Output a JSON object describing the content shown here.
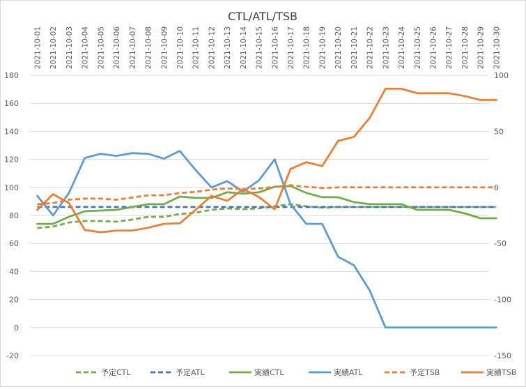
{
  "chart_data": {
    "type": "line",
    "title": "CTL/ATL/TSB",
    "categories": [
      "2021-10-01",
      "2021-10-02",
      "2021-10-03",
      "2021-10-04",
      "2021-10-05",
      "2021-10-06",
      "2021-10-07",
      "2021-10-08",
      "2021-10-09",
      "2021-10-10",
      "2021-10-11",
      "2021-10-12",
      "2021-10-13",
      "2021-10-14",
      "2021-10-15",
      "2021-10-16",
      "2021-10-17",
      "2021-10-18",
      "2021-10-19",
      "2021-10-20",
      "2021-10-21",
      "2021-10-22",
      "2021-10-23",
      "2021-10-24",
      "2021-10-25",
      "2021-10-26",
      "2021-10-27",
      "2021-10-28",
      "2021-10-29",
      "2021-10-30"
    ],
    "y_left": {
      "min": -20,
      "max": 180,
      "step": 20,
      "ticks": [
        "-20",
        "0",
        "20",
        "40",
        "60",
        "80",
        "100",
        "120",
        "140",
        "160",
        "180"
      ]
    },
    "y_right": {
      "min": -150,
      "max": 100,
      "step": 50,
      "ticks": [
        "-150",
        "-100",
        "-50",
        "0",
        "50",
        "100"
      ]
    },
    "grid": true,
    "legend_position": "bottom",
    "series": [
      {
        "name": "予定CTL",
        "axis": "left",
        "style": "dashed",
        "color": "#70ad47",
        "values": [
          71,
          72,
          75,
          76,
          76,
          75.5,
          77,
          79,
          79,
          81,
          82,
          84,
          85,
          84.5,
          85,
          86.5,
          88,
          86.5,
          85.5,
          86,
          86,
          86,
          86,
          86,
          86,
          86,
          86,
          86,
          86,
          86
        ]
      },
      {
        "name": "予定ATL",
        "axis": "left",
        "style": "dashed",
        "color": "#4472c4",
        "values": [
          86,
          86,
          86,
          86,
          86,
          86,
          86,
          86,
          86,
          86,
          86,
          86,
          86,
          86,
          86,
          86,
          86,
          86,
          86,
          86,
          86,
          86,
          86,
          86,
          86,
          86,
          86,
          86,
          86,
          86
        ]
      },
      {
        "name": "実績CTL",
        "axis": "left",
        "style": "solid",
        "color": "#70ad47",
        "values": [
          74,
          74,
          79,
          83,
          83.5,
          84,
          86,
          88,
          88,
          93.5,
          92.5,
          92.5,
          96.5,
          95.5,
          96.5,
          100.5,
          101,
          96,
          93,
          93,
          89.5,
          88,
          88,
          88,
          84,
          84,
          84,
          81.5,
          78,
          78
        ]
      },
      {
        "name": "実績ATL",
        "axis": "left",
        "style": "solid",
        "color": "#5b9bd5",
        "values": [
          94,
          80,
          96,
          121,
          124,
          122.5,
          124.5,
          124,
          120.5,
          126,
          112.5,
          100,
          104.5,
          97,
          105,
          120,
          88,
          74,
          74,
          50.5,
          44.5,
          26.5,
          0,
          0,
          0,
          0,
          0,
          0,
          0,
          0
        ]
      },
      {
        "name": "予定TSB",
        "axis": "right",
        "style": "dashed",
        "color": "#ed7d31",
        "values": [
          -15,
          -14,
          -11,
          -10,
          -10,
          -11,
          -9,
          -7,
          -7,
          -5,
          -4,
          -2,
          -1,
          -1.5,
          -1,
          0.5,
          2,
          0.5,
          -0.5,
          0,
          0,
          0,
          0,
          0,
          0,
          0,
          0,
          0,
          0,
          0
        ]
      },
      {
        "name": "実績TSB",
        "axis": "right",
        "style": "solid",
        "color": "#ed7d31",
        "values": [
          -20,
          -6,
          -14,
          -38,
          -40,
          -38.5,
          -38.5,
          -36,
          -32.5,
          -32,
          -20,
          -7.5,
          -12,
          -1.5,
          -8.5,
          -19.5,
          16.5,
          22.5,
          19,
          41.5,
          45,
          62,
          88,
          88,
          84,
          84,
          84,
          81.5,
          78,
          78
        ]
      }
    ]
  }
}
